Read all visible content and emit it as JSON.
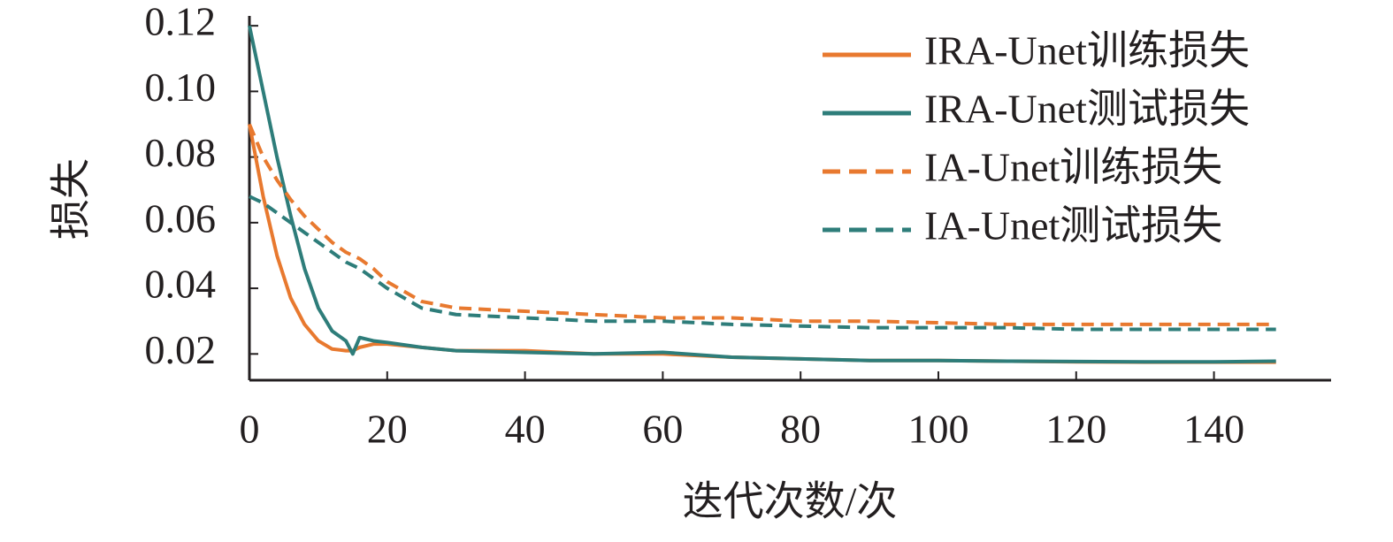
{
  "chart_data": {
    "type": "line",
    "x_label": "迭代次数/次",
    "y_label": "损失",
    "x": [
      0,
      2,
      4,
      6,
      8,
      10,
      12,
      14,
      15,
      16,
      18,
      20,
      25,
      30,
      40,
      50,
      60,
      70,
      80,
      90,
      100,
      110,
      120,
      130,
      140,
      149
    ],
    "series": [
      {
        "name": "IRA-Unet训练损失",
        "color": "#e8792f",
        "line_style": "solid",
        "values": [
          0.09,
          0.068,
          0.05,
          0.037,
          0.029,
          0.024,
          0.0215,
          0.021,
          0.021,
          0.022,
          0.023,
          0.023,
          0.022,
          0.021,
          0.021,
          0.02,
          0.02,
          0.019,
          0.0185,
          0.018,
          0.018,
          0.0178,
          0.0176,
          0.0175,
          0.0175,
          0.0175
        ]
      },
      {
        "name": "IRA-Unet测试损失",
        "color": "#2e7d7a",
        "line_style": "solid",
        "values": [
          0.12,
          0.1,
          0.08,
          0.062,
          0.046,
          0.034,
          0.027,
          0.024,
          0.02,
          0.025,
          0.024,
          0.0235,
          0.022,
          0.021,
          0.0205,
          0.02,
          0.0205,
          0.019,
          0.0185,
          0.018,
          0.018,
          0.0178,
          0.0177,
          0.0176,
          0.0176,
          0.0178
        ]
      },
      {
        "name": "IA-Unet训练损失",
        "color": "#e8792f",
        "line_style": "dashed",
        "values": [
          0.09,
          0.08,
          0.073,
          0.067,
          0.062,
          0.058,
          0.054,
          0.051,
          0.05,
          0.049,
          0.046,
          0.042,
          0.036,
          0.034,
          0.033,
          0.032,
          0.031,
          0.031,
          0.03,
          0.03,
          0.0295,
          0.029,
          0.029,
          0.029,
          0.029,
          0.029
        ]
      },
      {
        "name": "IA-Unet测试损失",
        "color": "#2e7d7a",
        "line_style": "dashed",
        "values": [
          0.068,
          0.066,
          0.063,
          0.06,
          0.057,
          0.054,
          0.051,
          0.048,
          0.047,
          0.046,
          0.043,
          0.04,
          0.034,
          0.032,
          0.031,
          0.03,
          0.03,
          0.029,
          0.0285,
          0.028,
          0.028,
          0.028,
          0.0275,
          0.0275,
          0.0275,
          0.0275
        ]
      }
    ],
    "xlim": [
      0,
      157
    ],
    "xticks": [
      0,
      20,
      40,
      60,
      80,
      100,
      120,
      140
    ],
    "ylim": [
      0.012,
      0.123
    ],
    "yticks": [
      0.02,
      0.04,
      0.06,
      0.08,
      {
        "value": 0.1,
        "label": "0.10"
      },
      0.12
    ],
    "legend": "upper right",
    "grid": false
  }
}
